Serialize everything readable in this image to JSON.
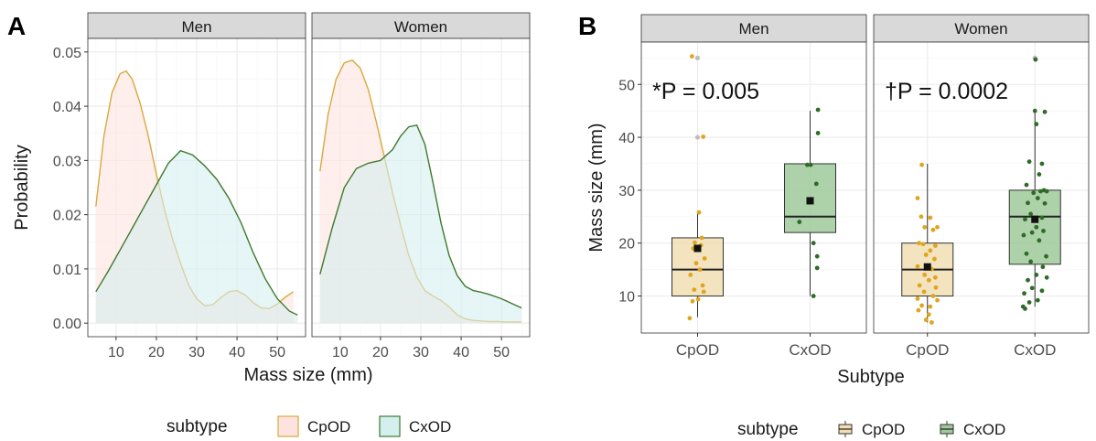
{
  "colors": {
    "cpod_line": "#d9a93a",
    "cpod_fill": "#fde3e0",
    "cxod_line": "#3e7a2e",
    "cxod_fill": "#d5eeee",
    "cpod_box": "#f1deb3",
    "cxod_box": "#9fc99a",
    "cpod_point": "#e0a51e",
    "cxod_point": "#2f6b28",
    "strip_bg": "#d9d9d9",
    "grid": "#ebebeb"
  },
  "chart_data": [
    {
      "type": "area",
      "panel_label": "A",
      "facets": [
        "Men",
        "Women"
      ],
      "xlabel": "Mass size (mm)",
      "ylabel": "Probability",
      "xlim": [
        3,
        57
      ],
      "ylim": [
        -0.0025,
        0.0525
      ],
      "xticks": [
        "10",
        "20",
        "30",
        "40",
        "50"
      ],
      "yticks": [
        "0.00",
        "0.01",
        "0.02",
        "0.03",
        "0.04",
        "0.05"
      ],
      "legend": {
        "title": "subtype",
        "entries": [
          "CpOD",
          "CxOD"
        ],
        "position": "bottom"
      },
      "series": [
        {
          "facet": "Men",
          "name": "CpOD",
          "x": [
            5,
            7,
            9,
            11,
            12.5,
            14,
            16,
            18,
            20,
            22,
            24,
            26,
            28,
            30,
            32,
            34,
            36,
            38,
            40,
            42,
            44,
            46,
            48,
            50,
            52,
            54
          ],
          "y": [
            0.0215,
            0.0345,
            0.0425,
            0.046,
            0.0465,
            0.045,
            0.0405,
            0.0345,
            0.0275,
            0.021,
            0.0155,
            0.011,
            0.007,
            0.0045,
            0.0032,
            0.0034,
            0.0047,
            0.0058,
            0.006,
            0.0052,
            0.0038,
            0.0028,
            0.0027,
            0.0035,
            0.0048,
            0.0058
          ]
        },
        {
          "facet": "Men",
          "name": "CxOD",
          "x": [
            5,
            8,
            11,
            14,
            17,
            20,
            23,
            26,
            29,
            32,
            35,
            38,
            41,
            44,
            47,
            50,
            53,
            55
          ],
          "y": [
            0.0058,
            0.0095,
            0.0135,
            0.0175,
            0.0215,
            0.0255,
            0.0295,
            0.0318,
            0.031,
            0.029,
            0.0265,
            0.023,
            0.0185,
            0.013,
            0.0082,
            0.0045,
            0.0022,
            0.0015
          ]
        },
        {
          "facet": "Women",
          "name": "CpOD",
          "x": [
            5,
            7,
            9,
            11,
            13,
            15,
            17,
            19,
            21,
            23,
            25,
            27,
            29,
            31,
            33,
            35,
            37,
            39,
            41,
            43,
            45,
            47,
            49,
            51,
            53,
            55
          ],
          "y": [
            0.028,
            0.0385,
            0.045,
            0.048,
            0.0485,
            0.047,
            0.043,
            0.037,
            0.0305,
            0.024,
            0.018,
            0.0125,
            0.0085,
            0.006,
            0.005,
            0.0042,
            0.003,
            0.0015,
            0.0008,
            0.0005,
            0.0004,
            0.0003,
            0.0003,
            0.0002,
            0.0002,
            0.0002
          ]
        },
        {
          "facet": "Women",
          "name": "CxOD",
          "x": [
            5,
            8,
            11,
            14,
            17,
            20,
            23,
            25,
            27,
            29,
            31,
            33,
            35,
            37,
            39,
            41,
            43,
            45,
            47,
            50,
            55
          ],
          "y": [
            0.009,
            0.0175,
            0.025,
            0.0285,
            0.0295,
            0.03,
            0.032,
            0.0345,
            0.0362,
            0.0365,
            0.033,
            0.026,
            0.0185,
            0.0125,
            0.0088,
            0.0068,
            0.006,
            0.0057,
            0.0053,
            0.0045,
            0.0028
          ]
        }
      ]
    },
    {
      "type": "box",
      "panel_label": "B",
      "facets": [
        "Men",
        "Women"
      ],
      "categories": [
        "CpOD",
        "CxOD"
      ],
      "xlabel": "Subtype",
      "ylabel": "Mass size (mm)",
      "ylim": [
        3,
        58
      ],
      "yticks": [
        "10",
        "20",
        "30",
        "40",
        "50"
      ],
      "legend": {
        "title": "subtype",
        "entries": [
          "CpOD",
          "CxOD"
        ],
        "position": "bottom"
      },
      "annotations": [
        {
          "facet": "Men",
          "text": "*P = 0.005"
        },
        {
          "facet": "Women",
          "text": "†P = 0.0002"
        }
      ],
      "boxes": [
        {
          "facet": "Men",
          "category": "CpOD",
          "min": 6,
          "q1": 10,
          "median": 15,
          "q3": 21,
          "max": 26,
          "mean": 19,
          "outliers": [
            40,
            55
          ],
          "points": [
            [
              -0.2,
              55.3
            ],
            [
              0.2,
              40.1
            ],
            [
              0.05,
              25.8
            ],
            [
              0.15,
              21
            ],
            [
              -0.1,
              20.1
            ],
            [
              0.12,
              19.6
            ],
            [
              -0.15,
              19
            ],
            [
              0.25,
              17.1
            ],
            [
              -0.05,
              16.2
            ],
            [
              0.08,
              15
            ],
            [
              -0.25,
              14
            ],
            [
              0.18,
              12
            ],
            [
              -0.12,
              11.2
            ],
            [
              0.22,
              10.8
            ],
            [
              0.02,
              9.4
            ],
            [
              -0.18,
              9
            ],
            [
              -0.28,
              5.8
            ]
          ]
        },
        {
          "facet": "Men",
          "category": "CxOD",
          "min": 10,
          "q1": 22,
          "median": 25,
          "q3": 35,
          "max": 45,
          "mean": 28,
          "outliers": [],
          "points": [
            [
              0.28,
              45.2
            ],
            [
              0.28,
              40.8
            ],
            [
              -0.1,
              34.8
            ],
            [
              0.02,
              34.8
            ],
            [
              0.22,
              31.2
            ],
            [
              -0.38,
              24
            ],
            [
              0.12,
              20
            ],
            [
              0.25,
              17.5
            ],
            [
              0.25,
              15.3
            ],
            [
              0.12,
              10
            ]
          ]
        },
        {
          "facet": "Women",
          "category": "CpOD",
          "min": 5,
          "q1": 10,
          "median": 15,
          "q3": 20,
          "max": 35,
          "mean": 15.5,
          "outliers": [],
          "points": [
            [
              -0.2,
              34.8
            ],
            [
              -0.35,
              28.5
            ],
            [
              -0.22,
              25
            ],
            [
              0.1,
              24.8
            ],
            [
              -0.1,
              23
            ],
            [
              0.35,
              23
            ],
            [
              0.2,
              22.5
            ],
            [
              -0.3,
              20
            ],
            [
              -0.15,
              19.8
            ],
            [
              0.28,
              19.5
            ],
            [
              0.1,
              18.6
            ],
            [
              -0.05,
              17.8
            ],
            [
              0.25,
              17
            ],
            [
              -0.35,
              15.6
            ],
            [
              0.15,
              15.1
            ],
            [
              -0.1,
              14
            ],
            [
              0.28,
              13.5
            ],
            [
              0.05,
              13
            ],
            [
              -0.28,
              12
            ],
            [
              0.3,
              11.6
            ],
            [
              -0.12,
              10.8
            ],
            [
              0.2,
              10
            ],
            [
              -0.35,
              9.5
            ],
            [
              0.35,
              9.2
            ],
            [
              -0.2,
              8.2
            ],
            [
              0.1,
              8
            ],
            [
              -0.32,
              7.3
            ],
            [
              0.05,
              6.5
            ],
            [
              -0.05,
              5.5
            ],
            [
              0.15,
              5
            ]
          ]
        },
        {
          "facet": "Women",
          "category": "CxOD",
          "min": 8,
          "q1": 16,
          "median": 25,
          "q3": 30,
          "max": 45,
          "mean": 24.5,
          "outliers": [
            55
          ],
          "points": [
            [
              0.02,
              54.7
            ],
            [
              0.0,
              45
            ],
            [
              0.35,
              44.8
            ],
            [
              0.05,
              42.5
            ],
            [
              -0.2,
              35.4
            ],
            [
              0.25,
              35
            ],
            [
              0.15,
              33
            ],
            [
              -0.3,
              31
            ],
            [
              0.32,
              30
            ],
            [
              0.2,
              29.8
            ],
            [
              0.42,
              29.8
            ],
            [
              -0.05,
              29.5
            ],
            [
              0.1,
              28.5
            ],
            [
              -0.25,
              27.6
            ],
            [
              0.35,
              27.5
            ],
            [
              -0.15,
              25.5
            ],
            [
              0.25,
              24.8
            ],
            [
              -0.35,
              24.5
            ],
            [
              0.05,
              23
            ],
            [
              0.3,
              22.3
            ],
            [
              -0.1,
              22
            ],
            [
              -0.4,
              21.5
            ],
            [
              0.15,
              20.5
            ],
            [
              -0.3,
              18
            ],
            [
              0.4,
              17.5
            ],
            [
              -0.15,
              16.5
            ],
            [
              0.28,
              15.5
            ],
            [
              0.05,
              14
            ],
            [
              -0.25,
              13
            ],
            [
              0.42,
              13.5
            ],
            [
              -0.1,
              11.5
            ],
            [
              0.25,
              11
            ],
            [
              -0.38,
              10.5
            ],
            [
              0.1,
              9.2
            ],
            [
              -0.2,
              8.8
            ],
            [
              -0.42,
              8
            ],
            [
              -0.35,
              7.6
            ]
          ]
        }
      ]
    }
  ]
}
